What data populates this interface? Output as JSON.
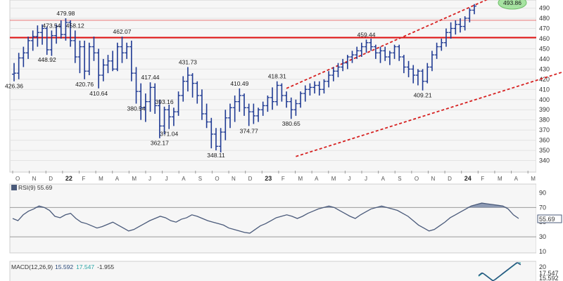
{
  "colors": {
    "bars": "#1f3a93",
    "resistance": "#e01010",
    "channel": "#d61f1f",
    "rsi_line": "#4a5a7a",
    "rsi_fill": "#7a8aa8",
    "macd_line": "#2b4a7a",
    "macd_signal": "#2aa6a6",
    "last_badge": "#a6e3a1"
  },
  "chart_data": [
    {
      "type": "ohlc",
      "x_axis": {
        "months": [
          "O",
          "N",
          "D",
          "22",
          "F",
          "M",
          "A",
          "M",
          "J",
          "J",
          "A",
          "S",
          "O",
          "N",
          "D",
          "23",
          "F",
          "M",
          "A",
          "M",
          "J",
          "J",
          "A",
          "S",
          "O",
          "N",
          "D",
          "24",
          "F",
          "M",
          "A",
          "M"
        ],
        "year_markers": [
          "22",
          "23",
          "24"
        ]
      },
      "y_axis": {
        "ticks": [
          "340",
          "350",
          "360",
          "370",
          "380",
          "390",
          "400",
          "410",
          "420",
          "430",
          "440",
          "450",
          "460",
          "470",
          "480",
          "490"
        ],
        "range": [
          330,
          498
        ]
      },
      "series": [
        {
          "values": [
            [
              425,
              436,
              418,
              426
            ],
            [
              426,
              446,
              420,
              441
            ],
            [
              441,
              452,
              432,
              446
            ],
            [
              446,
              462,
              440,
              458
            ],
            [
              458,
              468,
              448,
              462
            ],
            [
              462,
              473,
              452,
              466
            ],
            [
              466,
              474,
              454,
              470
            ],
            [
              470,
              472,
              444,
              449
            ],
            [
              449,
              468,
              443,
              463
            ],
            [
              463,
              474,
              455,
              472
            ],
            [
              472,
              478,
              460,
              464
            ],
            [
              464,
              480,
              458,
              476
            ],
            [
              476,
              478,
              452,
              458
            ],
            [
              458,
              468,
              436,
              442
            ],
            [
              442,
              458,
              426,
              452
            ],
            [
              452,
              458,
              420,
              428
            ],
            [
              428,
              456,
              424,
              452
            ],
            [
              452,
              462,
              438,
              446
            ],
            [
              446,
              450,
              411,
              424
            ],
            [
              424,
              440,
              418,
              434
            ],
            [
              434,
              444,
              426,
              438
            ],
            [
              438,
              448,
              428,
              430
            ],
            [
              430,
              456,
              428,
              452
            ],
            [
              452,
              462,
              436,
              446
            ],
            [
              446,
              456,
              440,
              452
            ],
            [
              452,
              458,
              418,
              426
            ],
            [
              426,
              432,
              396,
              408
            ],
            [
              408,
              416,
              380,
              392
            ],
            [
              392,
              406,
              378,
              398
            ],
            [
              398,
              417,
              388,
              412
            ],
            [
              412,
              416,
              386,
              394
            ],
            [
              394,
              400,
              362,
              374
            ],
            [
              374,
              393,
              366,
              390
            ],
            [
              390,
              395,
              371,
              383
            ],
            [
              383,
              392,
              374,
              388
            ],
            [
              388,
              408,
              384,
              404
            ],
            [
              404,
              423,
              398,
              418
            ],
            [
              418,
              432,
              408,
              424
            ],
            [
              424,
              426,
              402,
              416
            ],
            [
              416,
              418,
              396,
              404
            ],
            [
              404,
              410,
              380,
              386
            ],
            [
              386,
              396,
              372,
              378
            ],
            [
              378,
              382,
              352,
              366
            ],
            [
              366,
              372,
              350,
              354
            ],
            [
              354,
              372,
              348,
              368
            ],
            [
              368,
              390,
              360,
              382
            ],
            [
              382,
              396,
              372,
              392
            ],
            [
              392,
              404,
              378,
              398
            ],
            [
              398,
              411,
              388,
              404
            ],
            [
              404,
              406,
              384,
              392
            ],
            [
              392,
              396,
              374,
              388
            ],
            [
              388,
              396,
              376,
              384
            ],
            [
              384,
              392,
              378,
              390
            ],
            [
              390,
              398,
              384,
              394
            ],
            [
              394,
              404,
              388,
              402
            ],
            [
              402,
              412,
              390,
              398
            ],
            [
              398,
              418,
              394,
              414
            ],
            [
              414,
              416,
              398,
              404
            ],
            [
              404,
              408,
              392,
              398
            ],
            [
              398,
              402,
              381,
              390
            ],
            [
              390,
              400,
              384,
              396
            ],
            [
              396,
              408,
              392,
              406
            ],
            [
              406,
              414,
              398,
              410
            ],
            [
              410,
              416,
              404,
              412
            ],
            [
              412,
              418,
              406,
              414
            ],
            [
              414,
              418,
              404,
              410
            ],
            [
              410,
              420,
              406,
              418
            ],
            [
              418,
              428,
              412,
              424
            ],
            [
              424,
              432,
              418,
              428
            ],
            [
              428,
              436,
              422,
              432
            ],
            [
              432,
              440,
              428,
              436
            ],
            [
              436,
              444,
              430,
              442
            ],
            [
              442,
              448,
              436,
              444
            ],
            [
              444,
              452,
              440,
              448
            ],
            [
              448,
              456,
              442,
              452
            ],
            [
              452,
              459,
              446,
              456
            ],
            [
              456,
              460,
              448,
              452
            ],
            [
              452,
              454,
              440,
              446
            ],
            [
              446,
              452,
              436,
              448
            ],
            [
              448,
              452,
              438,
              442
            ],
            [
              442,
              448,
              434,
              446
            ],
            [
              446,
              454,
              440,
              452
            ],
            [
              452,
              454,
              438,
              442
            ],
            [
              442,
              444,
              426,
              432
            ],
            [
              432,
              438,
              422,
              430
            ],
            [
              430,
              434,
              416,
              424
            ],
            [
              424,
              430,
              414,
              428
            ],
            [
              428,
              430,
              409,
              418
            ],
            [
              418,
              436,
              416,
              432
            ],
            [
              432,
              448,
              428,
              444
            ],
            [
              444,
              456,
              440,
              452
            ],
            [
              452,
              460,
              448,
              456
            ],
            [
              456,
              470,
              452,
              466
            ],
            [
              466,
              476,
              460,
              470
            ],
            [
              470,
              478,
              464,
              474
            ],
            [
              474,
              480,
              466,
              472
            ],
            [
              472,
              482,
              468,
              480
            ],
            [
              480,
              490,
              476,
              488
            ],
            [
              488,
              494,
              484,
              492
            ]
          ]
        }
      ],
      "annotations": {
        "peaks": [
          "426.36",
          "473.54",
          "479.98",
          "448.92",
          "458.12",
          "420.76",
          "410.64",
          "462.07",
          "417.44",
          "380.54",
          "393.16",
          "362.17",
          "371.04",
          "431.73",
          "348.11",
          "410.49",
          "374.77",
          "418.31",
          "380.65",
          "459.44",
          "409.21"
        ],
        "last_price": "493.86"
      },
      "lines": {
        "resistance": [
          461,
          478
        ],
        "channel_upper": {
          "from": [
            10,
            411
          ],
          "to": [
            97,
            496
          ]
        },
        "channel_lower": {
          "from": [
            10,
            345
          ],
          "to": [
            100,
            443
          ]
        }
      }
    },
    {
      "type": "line",
      "title": "RSI(9) 55.69",
      "y_axis": {
        "ticks": [
          "10",
          "30",
          "50",
          "70",
          "90"
        ],
        "range": [
          10,
          100
        ]
      },
      "levels": [
        30,
        70
      ],
      "last_value": "55.69",
      "values": [
        55,
        52,
        60,
        65,
        68,
        72,
        70,
        66,
        58,
        56,
        60,
        62,
        55,
        50,
        48,
        45,
        42,
        44,
        47,
        50,
        46,
        42,
        38,
        40,
        44,
        48,
        52,
        55,
        58,
        56,
        52,
        50,
        54,
        56,
        60,
        58,
        55,
        52,
        50,
        48,
        46,
        42,
        40,
        38,
        36,
        35,
        40,
        45,
        48,
        52,
        56,
        58,
        60,
        58,
        55,
        58,
        62,
        65,
        68,
        70,
        72,
        70,
        66,
        62,
        58,
        55,
        60,
        64,
        68,
        70,
        72,
        70,
        68,
        66,
        62,
        58,
        52,
        46,
        42,
        38,
        40,
        45,
        50,
        56,
        60,
        64,
        68,
        72,
        74,
        76,
        75,
        74,
        73,
        72,
        68,
        60,
        55
      ]
    },
    {
      "type": "line",
      "title": "MACD(12,26,9)",
      "macd_label": "15.592",
      "signal_label": "17.547",
      "hist_label": "-1.955",
      "y_axis": {
        "ticks": [
          "20"
        ]
      },
      "last_values": [
        "17.547",
        "15.592"
      ],
      "macd_values": [
        2,
        3,
        4,
        5,
        5,
        4,
        3,
        2,
        1,
        0,
        -1,
        -2,
        -3,
        -4,
        -5,
        -4,
        -3,
        -2,
        -1,
        0,
        1,
        2,
        3,
        4,
        5,
        6,
        7,
        8,
        9,
        10,
        11,
        12,
        13,
        14,
        15,
        16,
        17,
        18,
        18,
        17,
        16,
        15.6
      ],
      "signal_values": [
        1,
        2,
        3,
        4,
        4.5,
        4.2,
        3.5,
        2.5,
        1.5,
        0.5,
        -0.5,
        -1.5,
        -2.5,
        -3.5,
        -4.2,
        -4,
        -3.4,
        -2.6,
        -1.6,
        -0.6,
        0.4,
        1.4,
        2.4,
        3.4,
        4.4,
        5.4,
        6.4,
        7.4,
        8.4,
        9.4,
        10.4,
        11.4,
        12.4,
        13.4,
        14.4,
        15.4,
        16.4,
        17.2,
        17.8,
        17.9,
        17.8,
        17.5
      ]
    }
  ]
}
